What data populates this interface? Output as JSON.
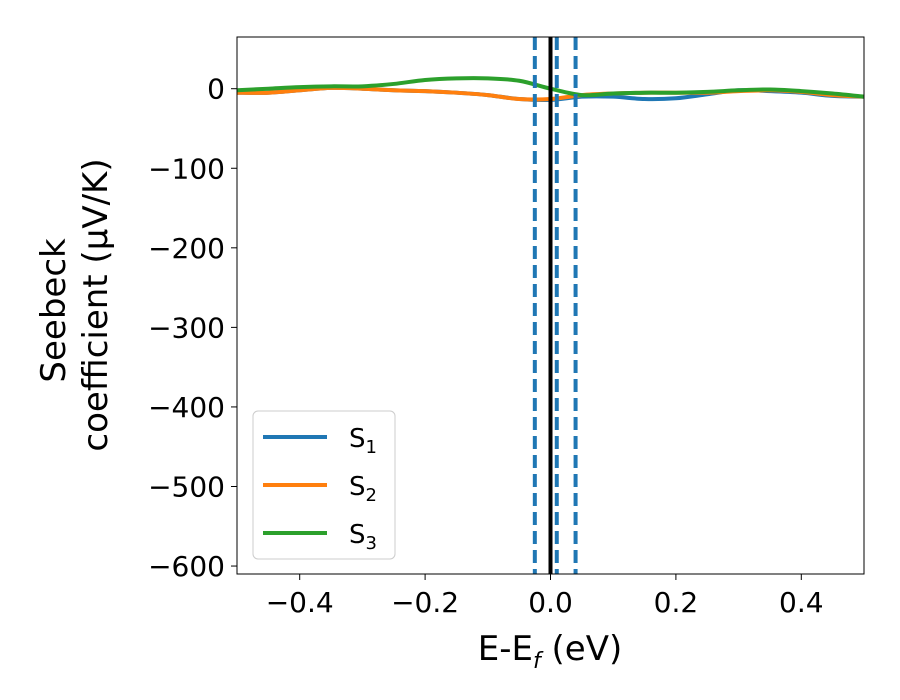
{
  "chart_data": {
    "type": "line",
    "xlabel": "E-E",
    "xlabel_sub": "f",
    "xlabel_unit": " (eV)",
    "ylabel_line1": "Seebeck",
    "ylabel_line2": "coefficient  (μV/K)",
    "xlim": [
      -0.5,
      0.5
    ],
    "ylim": [
      -610,
      65
    ],
    "xticks": [
      -0.4,
      -0.2,
      0.0,
      0.2,
      0.4
    ],
    "xtick_labels": [
      "−0.4",
      "−0.2",
      "0.0",
      "0.2",
      "0.4"
    ],
    "yticks": [
      0,
      -100,
      -200,
      -300,
      -400,
      -500,
      -600
    ],
    "ytick_labels": [
      "0",
      "−100",
      "−200",
      "−300",
      "−400",
      "−500",
      "−600"
    ],
    "grid": false,
    "legend_position": "lower-left",
    "fermi_line": {
      "x": 0.0,
      "color": "#000000"
    },
    "dashed_lines": {
      "x": [
        -0.025,
        0.01,
        0.04
      ],
      "color": "#1f77b4"
    },
    "series": [
      {
        "name": "S",
        "subscript": "1",
        "color": "#1f77b4",
        "x": [
          -0.5,
          -0.45,
          -0.4,
          -0.35,
          -0.3,
          -0.25,
          -0.2,
          -0.15,
          -0.1,
          -0.05,
          0.0,
          0.05,
          0.1,
          0.15,
          0.2,
          0.25,
          0.3,
          0.35,
          0.4,
          0.45,
          0.5
        ],
        "y": [
          -5,
          -5,
          -2,
          1,
          0,
          -2,
          -3,
          -5,
          -8,
          -13,
          -14,
          -10,
          -10,
          -13,
          -12,
          -7,
          -2,
          -3,
          -5,
          -9,
          -10
        ]
      },
      {
        "name": "S",
        "subscript": "2",
        "color": "#ff7f0e",
        "x": [
          -0.5,
          -0.45,
          -0.4,
          -0.35,
          -0.3,
          -0.25,
          -0.2,
          -0.15,
          -0.1,
          -0.05,
          0.0,
          0.05,
          0.1,
          0.15,
          0.2,
          0.25,
          0.3,
          0.35,
          0.4,
          0.45,
          0.5
        ],
        "y": [
          -5,
          -5,
          -2,
          1,
          0,
          -2,
          -3,
          -5,
          -8,
          -13,
          -13,
          -8,
          -6,
          -5,
          -5,
          -5,
          -3,
          -2,
          -4,
          -8,
          -10
        ]
      },
      {
        "name": "S",
        "subscript": "3",
        "color": "#2ca02c",
        "x": [
          -0.5,
          -0.45,
          -0.4,
          -0.35,
          -0.3,
          -0.25,
          -0.2,
          -0.15,
          -0.1,
          -0.05,
          0.0,
          0.05,
          0.1,
          0.15,
          0.2,
          0.25,
          0.3,
          0.35,
          0.4,
          0.45,
          0.5
        ],
        "y": [
          -2,
          0,
          2,
          3,
          3,
          6,
          11,
          13,
          13,
          10,
          0,
          -8,
          -6,
          -5,
          -5,
          -4,
          -2,
          -1,
          -3,
          -6,
          -10
        ]
      }
    ]
  }
}
